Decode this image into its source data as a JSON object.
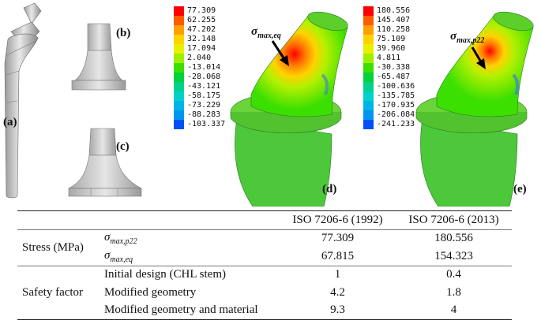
{
  "panels": {
    "a": "(a)",
    "b": "(b)",
    "c": "(c)",
    "d": "(d)",
    "e": "(e)"
  },
  "legend_d": {
    "values": [
      "77.309",
      "62.255",
      "47.202",
      "32.148",
      "17.094",
      "2.040",
      "-13.014",
      "-28.068",
      "-43.121",
      "-58.175",
      "-73.229",
      "-88.283",
      "-103.337"
    ],
    "colors": [
      "#ff0000",
      "#ff5a00",
      "#ffa000",
      "#ffd200",
      "#e8f000",
      "#9ef000",
      "#3ce000",
      "#00d23c",
      "#00d28c",
      "#00d2c8",
      "#00b4e6",
      "#0096f0",
      "#0050f5"
    ]
  },
  "legend_e": {
    "values": [
      "180.556",
      "145.407",
      "110.258",
      "75.109",
      "39.960",
      "4.811",
      "-30.338",
      "-65.487",
      "-100.636",
      "-135.785",
      "-170.935",
      "-206.084",
      "-241.233"
    ],
    "colors": [
      "#ff0000",
      "#ff5a00",
      "#ffa000",
      "#ffd200",
      "#e8f000",
      "#9ef000",
      "#3ce000",
      "#00d23c",
      "#00d28c",
      "#00d2c8",
      "#00b4e6",
      "#0096f0",
      "#0050f5"
    ]
  },
  "annotations": {
    "d_symbol": "σ",
    "d_sub": "max,eq",
    "e_symbol": "σ",
    "e_sub": "max,p22"
  },
  "table": {
    "headers": [
      "",
      "",
      "ISO 7206-6 (1992)",
      "ISO 7206-6 (2013)"
    ],
    "stress_group": "Stress (MPa)",
    "stress_rows": [
      {
        "sym": "σ",
        "sub": "max,p22",
        "v1": "77.309",
        "v2": "180.556"
      },
      {
        "sym": "σ",
        "sub": "max,eq",
        "v1": "67.815",
        "v2": "154.323"
      }
    ],
    "safety_group": "Safety factor",
    "safety_rows": [
      {
        "label": "Initial design (CHL stem)",
        "v1": "1",
        "v2": "0.4"
      },
      {
        "label": "Modified geometry",
        "v1": "4.2",
        "v2": "1.8"
      },
      {
        "label": "Modified geometry and material",
        "v1": "9.3",
        "v2": "4"
      }
    ]
  }
}
